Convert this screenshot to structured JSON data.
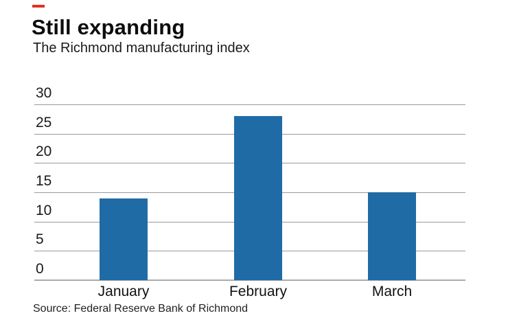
{
  "accent": {
    "dash_color": "#e0321f"
  },
  "header": {
    "title": "Still expanding",
    "subtitle": "The Richmond manufacturing index"
  },
  "footer": {
    "source": "Source: Federal Reserve Bank of Richmond"
  },
  "chart_data": {
    "type": "bar",
    "categories": [
      "January",
      "February",
      "March"
    ],
    "values": [
      14,
      28,
      15
    ],
    "title": "Still expanding",
    "subtitle": "The Richmond manufacturing index",
    "xlabel": "",
    "ylabel": "",
    "ylim": [
      0,
      30
    ],
    "yticks": [
      0,
      5,
      10,
      15,
      20,
      25,
      30
    ],
    "grid": true,
    "legend": "none",
    "bar_color": "#1f6ba6",
    "gridline_color": "#999999",
    "source": "Source: Federal Reserve Bank of Richmond"
  }
}
